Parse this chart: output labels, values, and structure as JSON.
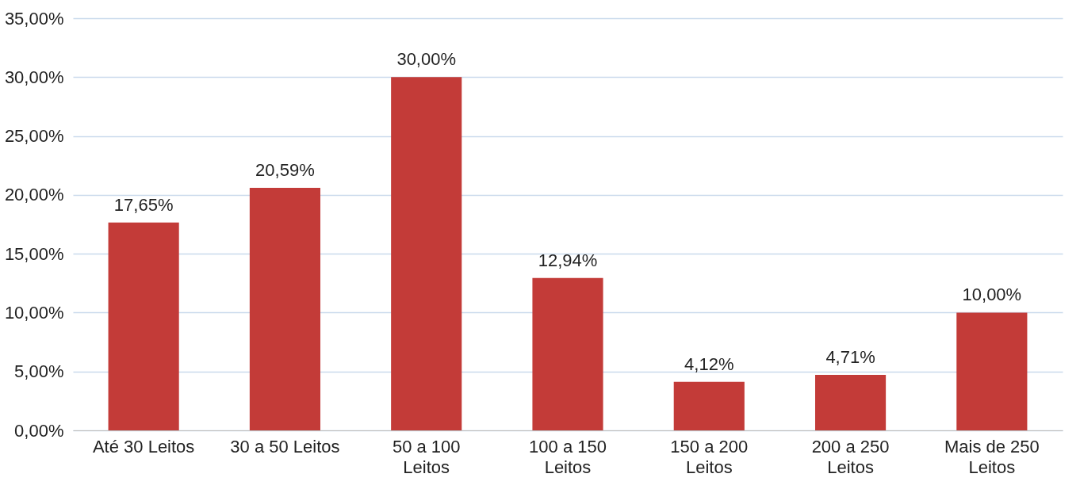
{
  "chart_data": {
    "type": "bar",
    "categories": [
      "Até 30 Leitos",
      "30 a 50 Leitos",
      "50 a 100 Leitos",
      "100 a 150 Leitos",
      "150 a 200 Leitos",
      "200 a 250 Leitos",
      "Mais de 250 Leitos"
    ],
    "values": [
      17.65,
      20.59,
      30.0,
      12.94,
      4.12,
      4.71,
      10.0
    ],
    "value_labels": [
      "17,65%",
      "20,59%",
      "30,00%",
      "12,94%",
      "4,12%",
      "4,71%",
      "10,00%"
    ],
    "color": "#c33b38",
    "ylim": [
      0,
      35
    ],
    "yticks": [
      {
        "value": 0,
        "label": "0,00%"
      },
      {
        "value": 5,
        "label": "5,00%"
      },
      {
        "value": 10,
        "label": "10,00%"
      },
      {
        "value": 15,
        "label": "15,00%"
      },
      {
        "value": 20,
        "label": "20,00%"
      },
      {
        "value": 25,
        "label": "25,00%"
      },
      {
        "value": 30,
        "label": "30,00%"
      },
      {
        "value": 35,
        "label": "35,00%"
      }
    ],
    "grid": "y"
  }
}
